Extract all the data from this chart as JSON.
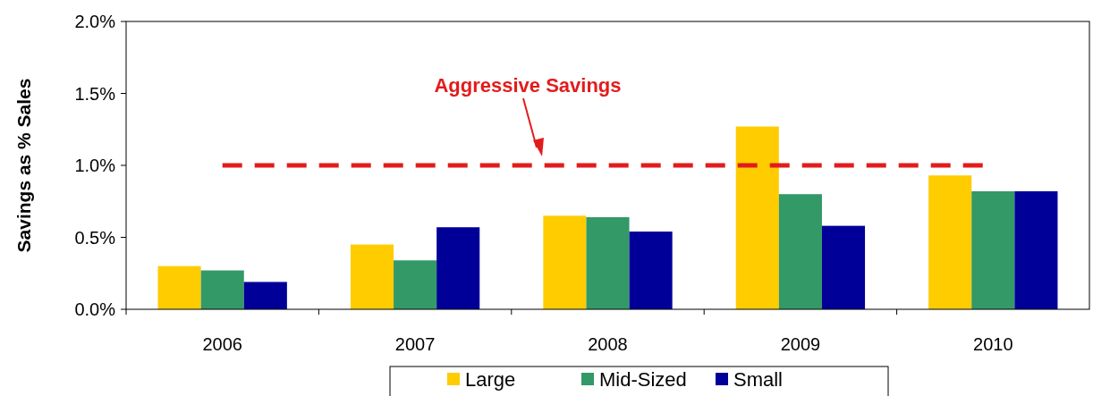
{
  "chart_data": {
    "type": "bar",
    "ylabel": "Savings as % Sales",
    "categories": [
      "2006",
      "2007",
      "2008",
      "2009",
      "2010"
    ],
    "series": [
      {
        "name": "Large",
        "color": "#ffcc00",
        "values": [
          0.3,
          0.45,
          0.65,
          1.27,
          0.93
        ]
      },
      {
        "name": "Mid-Sized",
        "color": "#339966",
        "values": [
          0.27,
          0.34,
          0.64,
          0.8,
          0.82
        ]
      },
      {
        "name": "Small",
        "color": "#000099",
        "values": [
          0.19,
          0.57,
          0.54,
          0.58,
          0.82
        ]
      }
    ],
    "ylim": [
      0,
      2
    ],
    "yticks": [
      {
        "value": 0,
        "label": "0.0%"
      },
      {
        "value": 0.5,
        "label": "0.5%"
      },
      {
        "value": 1,
        "label": "1.0%"
      },
      {
        "value": 1.5,
        "label": "1.5%"
      },
      {
        "value": 2,
        "label": "2.0%"
      }
    ],
    "ref_lines": [
      {
        "axis": "y",
        "value": 1,
        "label": "Aggressive Savings",
        "color": "#e31b1b",
        "line_style": "dashed"
      }
    ],
    "grid": false,
    "legend": "bottom"
  }
}
